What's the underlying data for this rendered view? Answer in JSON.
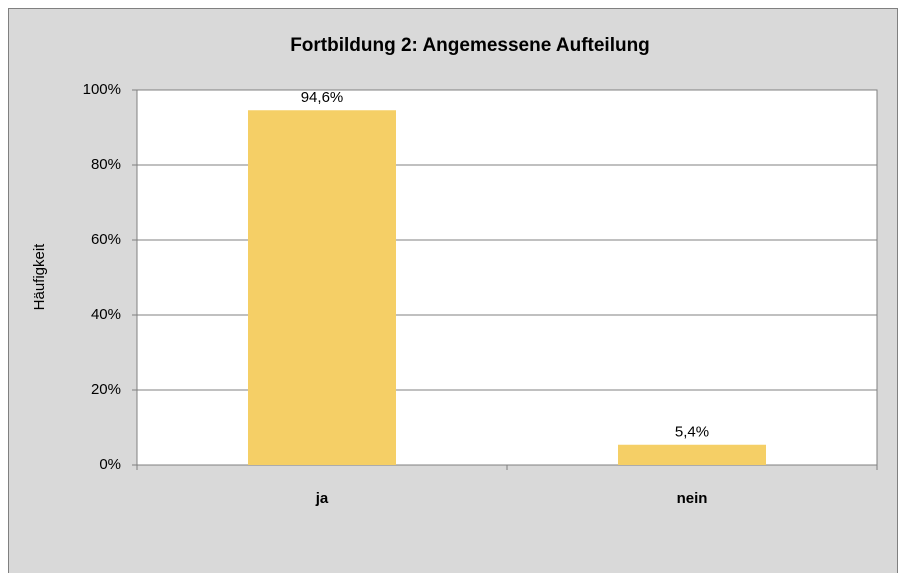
{
  "chart_data": {
    "type": "bar",
    "title": "Fortbildung 2: Angemessene Aufteilung",
    "y_label": "Häufigkeit",
    "categories": [
      "ja",
      "nein"
    ],
    "values": [
      94.6,
      5.4
    ],
    "value_labels": [
      "94,6%",
      "5,4%"
    ],
    "color": "#f5cf66",
    "ylim": [
      0,
      100
    ],
    "yticks": [
      {
        "value": 0,
        "label": "0%"
      },
      {
        "value": 20,
        "label": "20%"
      },
      {
        "value": 40,
        "label": "40%"
      },
      {
        "value": 60,
        "label": "60%"
      },
      {
        "value": 80,
        "label": "80%"
      },
      {
        "value": 100,
        "label": "100%"
      }
    ],
    "grid": true
  }
}
